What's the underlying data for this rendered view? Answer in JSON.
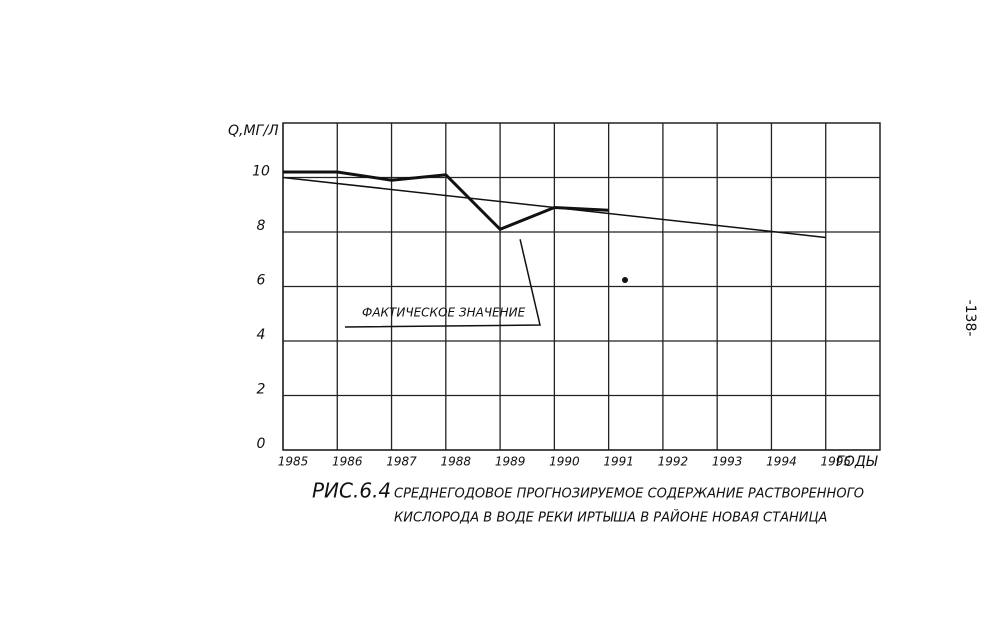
{
  "chart_data": {
    "type": "line",
    "caption_label": "РИС.6.4",
    "title": "СРЕДНЕГОДОВОЕ ПРОГНОЗИРУЕМОЕ СОДЕРЖАНИЕ РАСТВОРЕННОГО",
    "subtitle": "КИСЛОРОДА В ВОДЕ РЕКИ ИРТЫША В РАЙОНЕ НОВАЯ СТАНИЦА",
    "y_label": "Q,МГ/Л",
    "x_label": "ГОДЫ",
    "page_number": "-138-",
    "series": [
      {
        "name": "ФАКТИЧЕСКОЕ ЗНАЧЕНИЕ",
        "color": "#111",
        "x": [
          1985,
          1986,
          1987,
          1988,
          1989,
          1990,
          1991
        ],
        "values": [
          10.2,
          10.2,
          9.9,
          10.1,
          8.1,
          8.9,
          8.8
        ]
      },
      {
        "color": "#111",
        "x": [
          1985,
          1995
        ],
        "values": [
          10.0,
          7.8
        ]
      }
    ],
    "xlim": [
      1985,
      1996
    ],
    "xticks": [
      1985,
      1986,
      1987,
      1988,
      1989,
      1990,
      1991,
      1992,
      1993,
      1994,
      1995
    ],
    "ylim": [
      0,
      12
    ],
    "yticks": [
      0,
      2,
      4,
      6,
      8,
      10
    ],
    "grid": true
  }
}
